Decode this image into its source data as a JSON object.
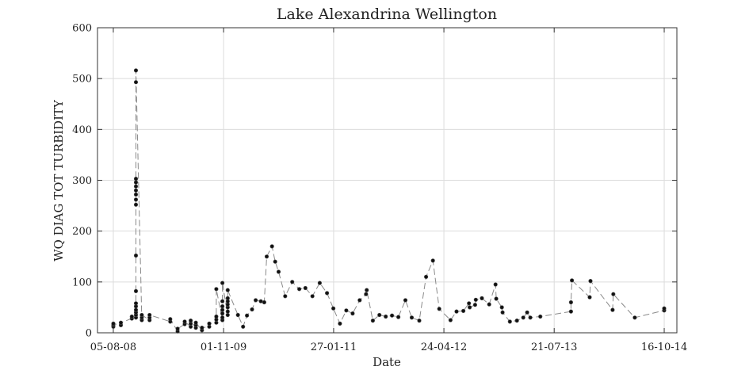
{
  "chart_data": {
    "type": "line",
    "title": "Lake Alexandrina Wellington",
    "xlabel": "Date",
    "ylabel": "WQ DIAG TOT TURBIDITY",
    "ylim": [
      0,
      600
    ],
    "xlim": [
      "2008-06-01",
      "2014-12-07"
    ],
    "grid": true,
    "x_ticks": [
      {
        "date": "2008-08-05",
        "label": "05-08-08"
      },
      {
        "date": "2009-11-01",
        "label": "01-11-09"
      },
      {
        "date": "2011-01-27",
        "label": "27-01-11"
      },
      {
        "date": "2012-04-24",
        "label": "24-04-12"
      },
      {
        "date": "2013-07-21",
        "label": "21-07-13"
      },
      {
        "date": "2014-10-16",
        "label": "16-10-14"
      }
    ],
    "y_ticks": [
      0,
      100,
      200,
      300,
      400,
      500,
      600
    ],
    "series": [
      {
        "marker": "dot",
        "line": "dashed",
        "color": "#8a8a8a",
        "points": [
          {
            "x": "2008-08-05",
            "y": 12
          },
          {
            "x": "2008-08-05",
            "y": 15
          },
          {
            "x": "2008-08-05",
            "y": 18
          },
          {
            "x": "2008-09-05",
            "y": 15
          },
          {
            "x": "2008-09-05",
            "y": 20
          },
          {
            "x": "2008-10-20",
            "y": 28
          },
          {
            "x": "2008-10-20",
            "y": 32
          },
          {
            "x": "2008-11-06",
            "y": 30
          },
          {
            "x": "2008-11-06",
            "y": 35
          },
          {
            "x": "2008-11-06",
            "y": 40
          },
          {
            "x": "2008-11-06",
            "y": 45
          },
          {
            "x": "2008-11-06",
            "y": 52
          },
          {
            "x": "2008-11-06",
            "y": 58
          },
          {
            "x": "2008-11-06",
            "y": 82
          },
          {
            "x": "2008-11-06",
            "y": 152
          },
          {
            "x": "2008-11-06",
            "y": 252
          },
          {
            "x": "2008-11-06",
            "y": 262
          },
          {
            "x": "2008-11-06",
            "y": 272
          },
          {
            "x": "2008-11-06",
            "y": 280
          },
          {
            "x": "2008-11-06",
            "y": 288
          },
          {
            "x": "2008-11-06",
            "y": 296
          },
          {
            "x": "2008-11-06",
            "y": 303
          },
          {
            "x": "2008-11-06",
            "y": 493
          },
          {
            "x": "2008-11-06",
            "y": 516
          },
          {
            "x": "2008-11-30",
            "y": 25
          },
          {
            "x": "2008-11-30",
            "y": 30
          },
          {
            "x": "2008-11-30",
            "y": 35
          },
          {
            "x": "2009-01-01",
            "y": 25
          },
          {
            "x": "2009-01-01",
            "y": 30
          },
          {
            "x": "2009-01-01",
            "y": 35
          },
          {
            "x": "2009-03-27",
            "y": 22
          },
          {
            "x": "2009-03-27",
            "y": 27
          },
          {
            "x": "2009-04-26",
            "y": 3
          },
          {
            "x": "2009-04-26",
            "y": 8
          },
          {
            "x": "2009-05-25",
            "y": 17
          },
          {
            "x": "2009-05-25",
            "y": 22
          },
          {
            "x": "2009-06-19",
            "y": 12
          },
          {
            "x": "2009-06-19",
            "y": 18
          },
          {
            "x": "2009-06-19",
            "y": 24
          },
          {
            "x": "2009-07-10",
            "y": 10
          },
          {
            "x": "2009-07-10",
            "y": 15
          },
          {
            "x": "2009-07-10",
            "y": 20
          },
          {
            "x": "2009-08-04",
            "y": 5
          },
          {
            "x": "2009-08-04",
            "y": 10
          },
          {
            "x": "2009-09-03",
            "y": 12
          },
          {
            "x": "2009-09-03",
            "y": 18
          },
          {
            "x": "2009-10-02",
            "y": 20
          },
          {
            "x": "2009-10-02",
            "y": 26
          },
          {
            "x": "2009-10-02",
            "y": 32
          },
          {
            "x": "2009-10-02",
            "y": 86
          },
          {
            "x": "2009-10-27",
            "y": 25
          },
          {
            "x": "2009-10-27",
            "y": 30
          },
          {
            "x": "2009-10-27",
            "y": 38
          },
          {
            "x": "2009-10-27",
            "y": 45
          },
          {
            "x": "2009-10-27",
            "y": 52
          },
          {
            "x": "2009-10-27",
            "y": 62
          },
          {
            "x": "2009-10-27",
            "y": 98
          },
          {
            "x": "2009-11-18",
            "y": 35
          },
          {
            "x": "2009-11-18",
            "y": 42
          },
          {
            "x": "2009-11-18",
            "y": 50
          },
          {
            "x": "2009-11-18",
            "y": 56
          },
          {
            "x": "2009-11-18",
            "y": 62
          },
          {
            "x": "2009-11-18",
            "y": 68
          },
          {
            "x": "2009-11-18",
            "y": 84
          },
          {
            "x": "2009-12-30",
            "y": 35
          },
          {
            "x": "2010-01-20",
            "y": 12
          },
          {
            "x": "2010-02-05",
            "y": 34
          },
          {
            "x": "2010-02-26",
            "y": 46
          },
          {
            "x": "2010-03-13",
            "y": 64
          },
          {
            "x": "2010-04-03",
            "y": 62
          },
          {
            "x": "2010-04-17",
            "y": 60
          },
          {
            "x": "2010-04-27",
            "y": 150
          },
          {
            "x": "2010-05-19",
            "y": 170
          },
          {
            "x": "2010-06-01",
            "y": 140
          },
          {
            "x": "2010-06-15",
            "y": 120
          },
          {
            "x": "2010-07-12",
            "y": 72
          },
          {
            "x": "2010-08-10",
            "y": 100
          },
          {
            "x": "2010-09-08",
            "y": 86
          },
          {
            "x": "2010-10-03",
            "y": 88
          },
          {
            "x": "2010-11-01",
            "y": 72
          },
          {
            "x": "2010-12-01",
            "y": 98
          },
          {
            "x": "2010-12-31",
            "y": 78
          },
          {
            "x": "2011-01-26",
            "y": 48
          },
          {
            "x": "2011-02-22",
            "y": 18
          },
          {
            "x": "2011-03-20",
            "y": 44
          },
          {
            "x": "2011-04-15",
            "y": 38
          },
          {
            "x": "2011-05-14",
            "y": 64
          },
          {
            "x": "2011-06-09",
            "y": 76
          },
          {
            "x": "2011-06-12",
            "y": 84
          },
          {
            "x": "2011-07-07",
            "y": 24
          },
          {
            "x": "2011-08-03",
            "y": 35
          },
          {
            "x": "2011-08-29",
            "y": 32
          },
          {
            "x": "2011-09-24",
            "y": 34
          },
          {
            "x": "2011-10-20",
            "y": 31
          },
          {
            "x": "2011-11-18",
            "y": 64
          },
          {
            "x": "2011-12-14",
            "y": 30
          },
          {
            "x": "2012-01-14",
            "y": 24
          },
          {
            "x": "2012-02-11",
            "y": 110
          },
          {
            "x": "2012-03-10",
            "y": 142
          },
          {
            "x": "2012-04-05",
            "y": 47
          },
          {
            "x": "2012-05-21",
            "y": 25
          },
          {
            "x": "2012-06-15",
            "y": 42
          },
          {
            "x": "2012-07-13",
            "y": 43
          },
          {
            "x": "2012-08-05",
            "y": 58
          },
          {
            "x": "2012-08-08",
            "y": 50
          },
          {
            "x": "2012-08-30",
            "y": 55
          },
          {
            "x": "2012-09-02",
            "y": 65
          },
          {
            "x": "2012-09-27",
            "y": 68
          },
          {
            "x": "2012-10-27",
            "y": 56
          },
          {
            "x": "2012-11-22",
            "y": 95
          },
          {
            "x": "2012-11-25",
            "y": 67
          },
          {
            "x": "2012-12-18",
            "y": 50
          },
          {
            "x": "2012-12-21",
            "y": 40
          },
          {
            "x": "2013-01-20",
            "y": 22
          },
          {
            "x": "2013-02-18",
            "y": 24
          },
          {
            "x": "2013-03-16",
            "y": 30
          },
          {
            "x": "2013-04-01",
            "y": 40
          },
          {
            "x": "2013-04-14",
            "y": 30
          },
          {
            "x": "2013-05-25",
            "y": 32
          },
          {
            "x": "2013-09-28",
            "y": 42
          },
          {
            "x": "2013-09-28",
            "y": 60
          },
          {
            "x": "2013-10-02",
            "y": 103
          },
          {
            "x": "2013-12-14",
            "y": 70
          },
          {
            "x": "2013-12-17",
            "y": 102
          },
          {
            "x": "2014-03-18",
            "y": 45
          },
          {
            "x": "2014-03-21",
            "y": 76
          },
          {
            "x": "2014-06-17",
            "y": 30
          },
          {
            "x": "2014-10-16",
            "y": 44
          },
          {
            "x": "2014-10-16",
            "y": 48
          }
        ]
      }
    ]
  }
}
